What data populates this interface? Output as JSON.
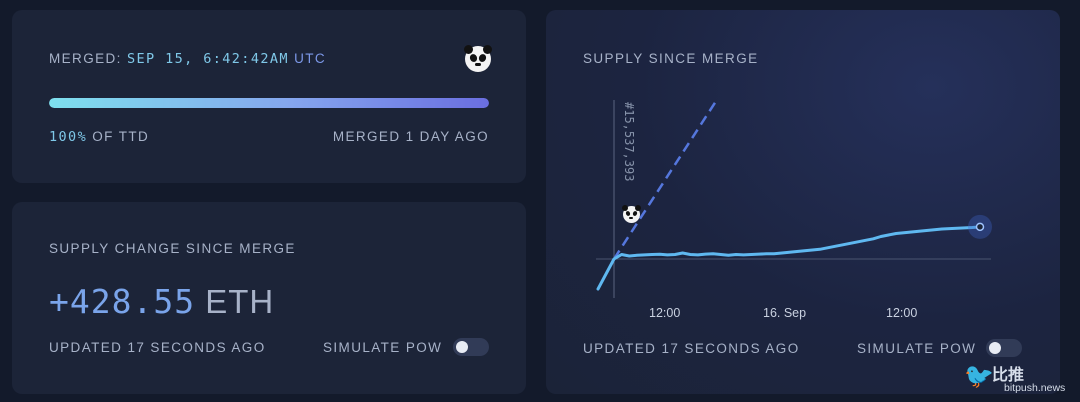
{
  "merge": {
    "label_prefix": "MERGED:",
    "timestamp": "SEP 15, 6:42:42AM",
    "timezone": "UTC",
    "progress_pct_text": "100%",
    "progress_suffix": "OF TTD",
    "progress_fraction": 1.0,
    "merged_ago": "MERGED 1 DAY AGO",
    "icon": "panda-icon"
  },
  "supply": {
    "title": "SUPPLY CHANGE SINCE MERGE",
    "value": "+428.55",
    "unit": "ETH",
    "updated": "UPDATED 17 SECONDS AGO",
    "simulate_label": "SIMULATE PoW",
    "simulate_on": false
  },
  "chart": {
    "title": "SUPPLY SINCE MERGE",
    "updated": "UPDATED 17 SECONDS AGO",
    "simulate_label": "SIMULATE PoW",
    "simulate_on": false,
    "merge_block": "#15,537,393",
    "colors": {
      "line": "#5fb8f0",
      "pow_dashed": "#5577dd",
      "accent": "#7aa4ea"
    }
  },
  "chart_data": {
    "type": "line",
    "x_tick_labels": [
      "12:00",
      "16. Sep",
      "12:00"
    ],
    "series": [
      {
        "style": "solid",
        "values": [
          -300,
          0,
          60,
          40,
          50,
          55,
          60,
          62,
          55,
          60,
          80,
          60,
          55,
          65,
          70,
          60,
          50,
          60,
          55,
          60,
          65,
          70,
          70,
          80,
          90,
          100,
          110,
          120,
          130,
          150,
          170,
          190,
          210,
          230,
          250,
          270,
          300,
          320,
          340,
          350,
          360,
          370,
          380,
          390,
          400,
          405,
          410,
          415,
          420,
          428.55
        ]
      },
      {
        "style": "dashed",
        "values": [
          0,
          1600
        ]
      }
    ],
    "legend": "none",
    "grid": false
  },
  "watermark": {
    "cn": "比推",
    "en": "bitpush.news"
  }
}
